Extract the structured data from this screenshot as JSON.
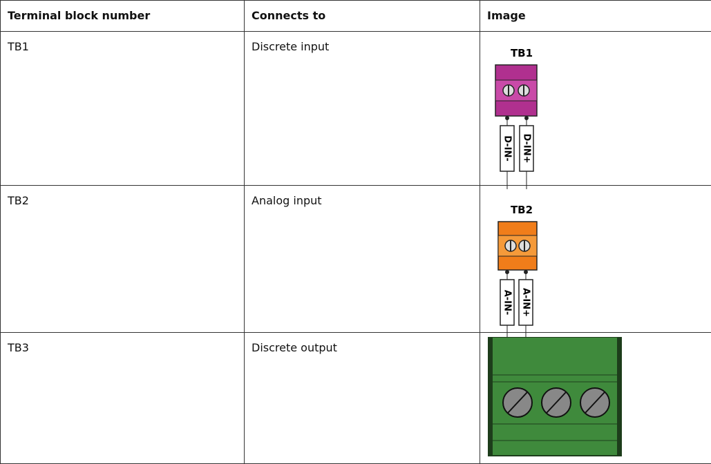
{
  "table": {
    "header": [
      "Terminal block number",
      "Connects to",
      "Image"
    ],
    "rows": [
      [
        "TB1",
        "Discrete input"
      ],
      [
        "TB2",
        "Analog input"
      ],
      [
        "TB3",
        "Discrete output"
      ]
    ]
  },
  "images": [
    {
      "label": "TB1",
      "pins": [
        "D-IN-",
        "D-IN+"
      ]
    },
    {
      "label": "TB2",
      "pins": [
        "A-IN-",
        "A-IN+"
      ]
    }
  ]
}
